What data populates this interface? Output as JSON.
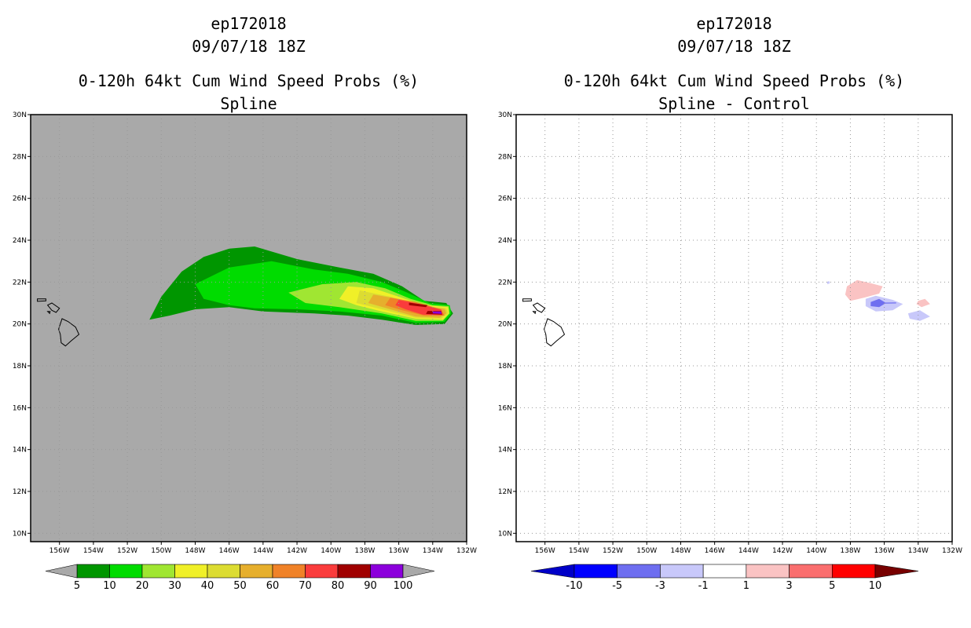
{
  "chart_data": [
    {
      "type": "heatmap",
      "title_lines": [
        "ep172018",
        "09/07/18 18Z",
        "0-120h 64kt Cum Wind Speed Probs (%)",
        "Spline"
      ],
      "xlim": [
        -157.7,
        -132.0
      ],
      "ylim": [
        9.6,
        30.0
      ],
      "xticks": [
        -156,
        -154,
        -152,
        -150,
        -148,
        -146,
        -144,
        -142,
        -140,
        -138,
        -136,
        -134,
        -132
      ],
      "xtick_labels": [
        "156W",
        "154W",
        "152W",
        "150W",
        "148W",
        "146W",
        "144W",
        "142W",
        "140W",
        "138W",
        "136W",
        "134W",
        "132W"
      ],
      "yticks": [
        10,
        12,
        14,
        16,
        18,
        20,
        22,
        24,
        26,
        28,
        30
      ],
      "ytick_labels": [
        "10N",
        "12N",
        "14N",
        "16N",
        "18N",
        "20N",
        "22N",
        "24N",
        "26N",
        "28N",
        "30N"
      ],
      "grid": true,
      "background": "#a9a9a9",
      "colorbar": {
        "levels": [
          "5",
          "10",
          "20",
          "30",
          "40",
          "50",
          "60",
          "70",
          "80",
          "90",
          "100"
        ],
        "colors": [
          "#009600",
          "#00dc00",
          "#a0e632",
          "#f0f028",
          "#dcdc32",
          "#e6af2d",
          "#f08228",
          "#fa3c3c",
          "#a00000",
          "#8c00dc"
        ]
      },
      "contours": [
        {
          "level": 5,
          "color": "#009600",
          "points": [
            [
              -150.7,
              20.2
            ],
            [
              -150.0,
              21.3
            ],
            [
              -148.8,
              22.5
            ],
            [
              -147.5,
              23.2
            ],
            [
              -146.0,
              23.6
            ],
            [
              -144.5,
              23.7
            ],
            [
              -142.0,
              23.1
            ],
            [
              -139.5,
              22.7
            ],
            [
              -137.5,
              22.4
            ],
            [
              -135.8,
              21.8
            ],
            [
              -134.5,
              21.1
            ],
            [
              -133.2,
              21.0
            ],
            [
              -132.8,
              20.5
            ],
            [
              -133.3,
              20.0
            ],
            [
              -135.0,
              19.95
            ],
            [
              -137.0,
              20.2
            ],
            [
              -139.0,
              20.4
            ],
            [
              -141.0,
              20.5
            ],
            [
              -144.0,
              20.6
            ],
            [
              -146.0,
              20.8
            ],
            [
              -148.0,
              20.7
            ],
            [
              -149.5,
              20.4
            ]
          ]
        },
        {
          "level": 10,
          "color": "#00dc00",
          "points": [
            [
              -148.0,
              21.9
            ],
            [
              -146.0,
              22.7
            ],
            [
              -143.5,
              23.0
            ],
            [
              -141.0,
              22.6
            ],
            [
              -139.0,
              22.4
            ],
            [
              -137.0,
              22.0
            ],
            [
              -135.5,
              21.5
            ],
            [
              -134.2,
              21.0
            ],
            [
              -133.0,
              20.9
            ],
            [
              -132.9,
              20.5
            ],
            [
              -133.3,
              20.1
            ],
            [
              -135.0,
              20.05
            ],
            [
              -137.0,
              20.4
            ],
            [
              -139.5,
              20.6
            ],
            [
              -142.0,
              20.7
            ],
            [
              -144.5,
              20.75
            ],
            [
              -146.0,
              20.9
            ],
            [
              -147.5,
              21.2
            ]
          ]
        },
        {
          "level": 20,
          "color": "#a0e632",
          "points": [
            [
              -142.5,
              21.5
            ],
            [
              -140.5,
              21.9
            ],
            [
              -138.5,
              22.0
            ],
            [
              -136.8,
              21.7
            ],
            [
              -135.3,
              21.2
            ],
            [
              -134.0,
              20.9
            ],
            [
              -133.05,
              20.85
            ],
            [
              -133.0,
              20.5
            ],
            [
              -133.4,
              20.15
            ],
            [
              -135.0,
              20.15
            ],
            [
              -137.0,
              20.5
            ],
            [
              -139.5,
              20.8
            ],
            [
              -141.5,
              21.0
            ]
          ]
        },
        {
          "level": 30,
          "color": "#f0f028",
          "points": [
            [
              -139.0,
              21.8
            ],
            [
              -137.5,
              21.7
            ],
            [
              -136.0,
              21.3
            ],
            [
              -134.5,
              20.9
            ],
            [
              -133.1,
              20.8
            ],
            [
              -133.05,
              20.5
            ],
            [
              -133.4,
              20.2
            ],
            [
              -135.0,
              20.25
            ],
            [
              -137.0,
              20.6
            ],
            [
              -138.5,
              20.9
            ],
            [
              -139.5,
              21.2
            ]
          ]
        },
        {
          "level": 40,
          "color": "#dcdc32",
          "points": [
            [
              -138.3,
              21.6
            ],
            [
              -136.5,
              21.3
            ],
            [
              -134.8,
              20.9
            ],
            [
              -133.2,
              20.75
            ],
            [
              -133.1,
              20.5
            ],
            [
              -133.5,
              20.25
            ],
            [
              -135.0,
              20.3
            ],
            [
              -137.0,
              20.7
            ],
            [
              -138.5,
              21.0
            ]
          ]
        },
        {
          "level": 50,
          "color": "#e6af2d",
          "points": [
            [
              -137.5,
              21.4
            ],
            [
              -136.0,
              21.2
            ],
            [
              -134.5,
              20.85
            ],
            [
              -133.3,
              20.72
            ],
            [
              -133.2,
              20.5
            ],
            [
              -133.6,
              20.3
            ],
            [
              -135.0,
              20.35
            ],
            [
              -136.5,
              20.7
            ],
            [
              -137.8,
              21.0
            ]
          ]
        },
        {
          "level": 60,
          "color": "#f08228",
          "points": [
            [
              -136.5,
              21.25
            ],
            [
              -135.0,
              21.05
            ],
            [
              -133.5,
              20.7
            ],
            [
              -133.3,
              20.4
            ],
            [
              -134.5,
              20.4
            ],
            [
              -135.8,
              20.65
            ],
            [
              -136.8,
              20.9
            ]
          ]
        },
        {
          "level": 70,
          "color": "#fa3c3c",
          "points": [
            [
              -136.0,
              21.15
            ],
            [
              -134.8,
              20.95
            ],
            [
              -133.5,
              20.68
            ],
            [
              -133.4,
              20.42
            ],
            [
              -134.6,
              20.45
            ],
            [
              -135.6,
              20.7
            ],
            [
              -136.2,
              20.9
            ]
          ]
        },
        {
          "level": 80,
          "color": "#a00000",
          "points": [
            [
              -135.4,
              21.02
            ],
            [
              -134.3,
              20.9
            ],
            [
              -134.4,
              20.8
            ],
            [
              -135.4,
              20.9
            ]
          ]
        },
        {
          "level": 80,
          "color": "#a00000",
          "points": [
            [
              -134.3,
              20.62
            ],
            [
              -133.5,
              20.62
            ],
            [
              -133.45,
              20.45
            ],
            [
              -134.4,
              20.48
            ]
          ]
        },
        {
          "level": 90,
          "color": "#8c00dc",
          "points": [
            [
              -134.0,
              20.6
            ],
            [
              -133.5,
              20.6
            ],
            [
              -133.48,
              20.48
            ],
            [
              -134.0,
              20.5
            ]
          ]
        }
      ]
    },
    {
      "type": "heatmap",
      "title_lines": [
        "ep172018",
        "09/07/18 18Z",
        "0-120h 64kt Cum Wind Speed Probs (%)",
        "Spline - Control"
      ],
      "xlim": [
        -157.7,
        -132.0
      ],
      "ylim": [
        9.6,
        30.0
      ],
      "xticks": [
        -156,
        -154,
        -152,
        -150,
        -148,
        -146,
        -144,
        -142,
        -140,
        -138,
        -136,
        -134,
        -132
      ],
      "xtick_labels": [
        "156W",
        "154W",
        "152W",
        "150W",
        "148W",
        "146W",
        "144W",
        "142W",
        "140W",
        "138W",
        "136W",
        "134W",
        "132W"
      ],
      "yticks": [
        10,
        12,
        14,
        16,
        18,
        20,
        22,
        24,
        26,
        28,
        30
      ],
      "ytick_labels": [
        "10N",
        "12N",
        "14N",
        "16N",
        "18N",
        "20N",
        "22N",
        "24N",
        "26N",
        "28N",
        "30N"
      ],
      "grid": true,
      "background": "#ffffff",
      "colorbar": {
        "levels": [
          "-10",
          "-5",
          "-3",
          "-1",
          "1",
          "3",
          "5",
          "10"
        ],
        "colors": [
          "#0000c8",
          "#0000ff",
          "#6e6ef0",
          "#c8c8fa",
          "#ffffff",
          "#fac3c3",
          "#fa6e6e",
          "#ff0000",
          "#780000"
        ]
      },
      "contours": [
        {
          "level": 1,
          "color": "#fac3c3",
          "points": [
            [
              -138.2,
              21.8
            ],
            [
              -137.6,
              22.1
            ],
            [
              -136.8,
              21.95
            ],
            [
              -136.1,
              21.8
            ],
            [
              -136.3,
              21.45
            ],
            [
              -137.2,
              21.25
            ],
            [
              -138.0,
              21.1
            ],
            [
              -138.3,
              21.4
            ]
          ]
        },
        {
          "level": 1,
          "color": "#fac3c3",
          "points": [
            [
              -134.0,
              21.1
            ],
            [
              -133.6,
              21.2
            ],
            [
              -133.3,
              20.95
            ],
            [
              -133.8,
              20.8
            ],
            [
              -134.1,
              20.95
            ]
          ]
        },
        {
          "level": -1,
          "color": "#c8c8fa",
          "points": [
            [
              -137.1,
              21.2
            ],
            [
              -136.5,
              21.35
            ],
            [
              -135.5,
              21.15
            ],
            [
              -134.9,
              20.95
            ],
            [
              -135.5,
              20.65
            ],
            [
              -136.5,
              20.6
            ],
            [
              -137.1,
              20.85
            ]
          ]
        },
        {
          "level": -1,
          "color": "#c8c8fa",
          "points": [
            [
              -134.6,
              20.5
            ],
            [
              -133.9,
              20.65
            ],
            [
              -133.3,
              20.35
            ],
            [
              -133.9,
              20.15
            ],
            [
              -134.5,
              20.25
            ]
          ]
        },
        {
          "level": -1,
          "color": "#c8c8fa",
          "points": [
            [
              -139.4,
              22.0
            ],
            [
              -139.25,
              22.05
            ],
            [
              -139.2,
              21.95
            ],
            [
              -139.35,
              21.9
            ]
          ]
        },
        {
          "level": -3,
          "color": "#6e6ef0",
          "points": [
            [
              -136.8,
              21.05
            ],
            [
              -136.3,
              21.2
            ],
            [
              -135.9,
              21.0
            ],
            [
              -136.3,
              20.8
            ],
            [
              -136.8,
              20.85
            ]
          ]
        },
        {
          "level": -3,
          "color": "#6e6ef0",
          "points": [
            [
              -136.0,
              21.02
            ],
            [
              -135.3,
              21.03
            ],
            [
              -135.3,
              20.98
            ],
            [
              -136.0,
              20.97
            ]
          ]
        }
      ]
    }
  ]
}
